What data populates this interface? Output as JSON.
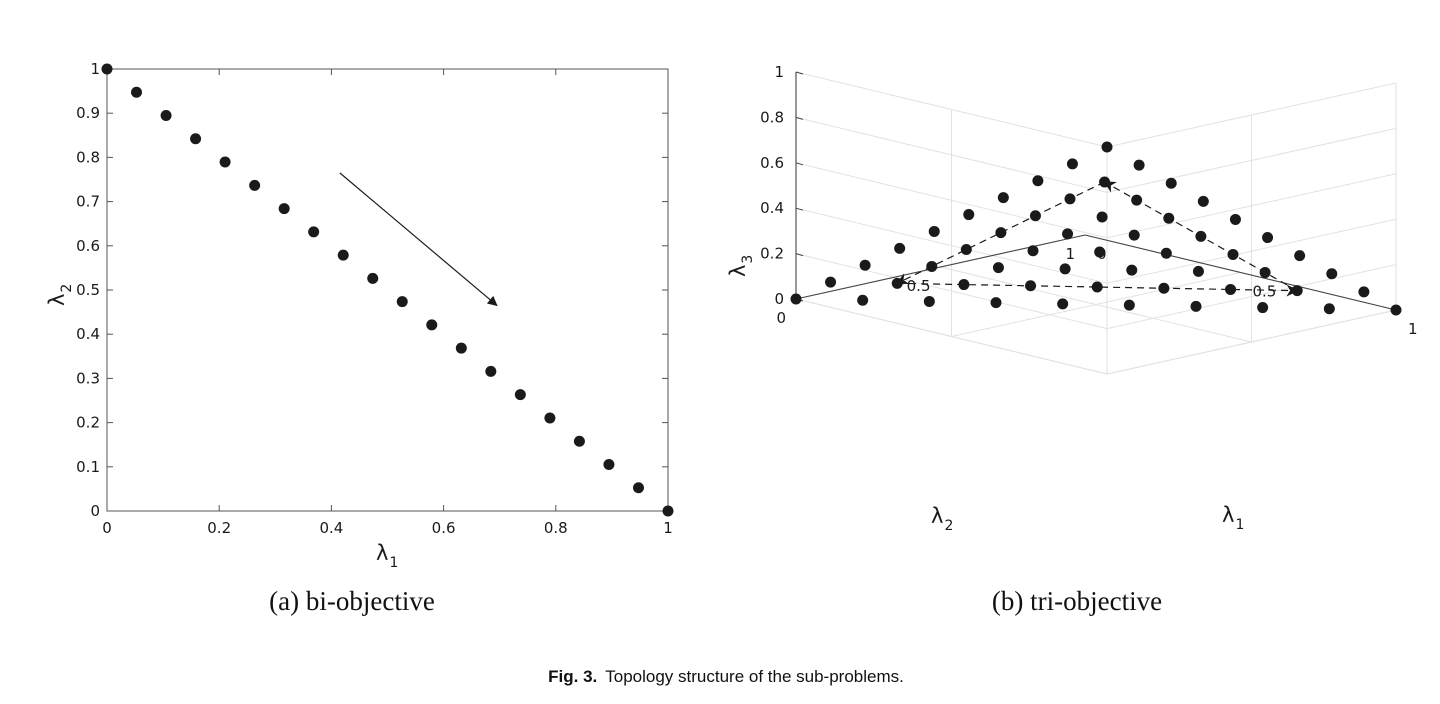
{
  "chart_data": [
    {
      "type": "scatter",
      "x": [
        0,
        0.0526,
        0.1053,
        0.1579,
        0.2105,
        0.2632,
        0.3158,
        0.3684,
        0.4211,
        0.4737,
        0.5263,
        0.5789,
        0.6316,
        0.6842,
        0.7368,
        0.7895,
        0.8421,
        0.8947,
        0.9474,
        1
      ],
      "y": [
        1,
        0.9474,
        0.8947,
        0.8421,
        0.7895,
        0.7368,
        0.6842,
        0.6316,
        0.5789,
        0.5263,
        0.4737,
        0.4211,
        0.3684,
        0.3158,
        0.2632,
        0.2105,
        0.1579,
        0.1053,
        0.0526,
        0
      ],
      "xlim": [
        0,
        1
      ],
      "ylim": [
        0,
        1
      ],
      "xticks": [
        "0",
        "0.2",
        "0.4",
        "0.6",
        "0.8",
        "1"
      ],
      "yticks": [
        "0",
        "0.1",
        "0.2",
        "0.3",
        "0.4",
        "0.5",
        "0.6",
        "0.7",
        "0.8",
        "0.9",
        "1"
      ],
      "xlabel": "λ",
      "xlabel_sub": "1",
      "ylabel": "λ",
      "ylabel_sub": "2",
      "arrow": {
        "from": [
          0.415,
          0.765
        ],
        "to": [
          0.695,
          0.465
        ]
      },
      "caption": "(a)  bi-objective"
    },
    {
      "type": "scatter3d",
      "grid_divisions": 9,
      "x_ticks": [
        "0",
        "0.5",
        "1"
      ],
      "y_ticks": [
        "0",
        "0.5",
        "1"
      ],
      "z_ticks": [
        "0",
        "0.2",
        "0.4",
        "0.6",
        "0.8",
        "1"
      ],
      "xlabel": "λ",
      "xlabel_sub": "1",
      "ylabel": "λ",
      "ylabel_sub": "2",
      "zlabel": "λ",
      "zlabel_sub": "3",
      "arrows": [
        {
          "from": [
            0.111,
            0.111,
            0.778
          ],
          "to": [
            0.111,
            0.778,
            0.111
          ]
        },
        {
          "from": [
            0.111,
            0.778,
            0.111
          ],
          "to": [
            0.778,
            0.111,
            0.111
          ]
        },
        {
          "from": [
            0.778,
            0.111,
            0.111
          ],
          "to": [
            0.111,
            0.111,
            0.778
          ]
        }
      ],
      "caption": "(b)  tri-objective"
    }
  ],
  "caption": {
    "label": "Fig. 3.",
    "text": "Topology structure of the sub-problems."
  }
}
